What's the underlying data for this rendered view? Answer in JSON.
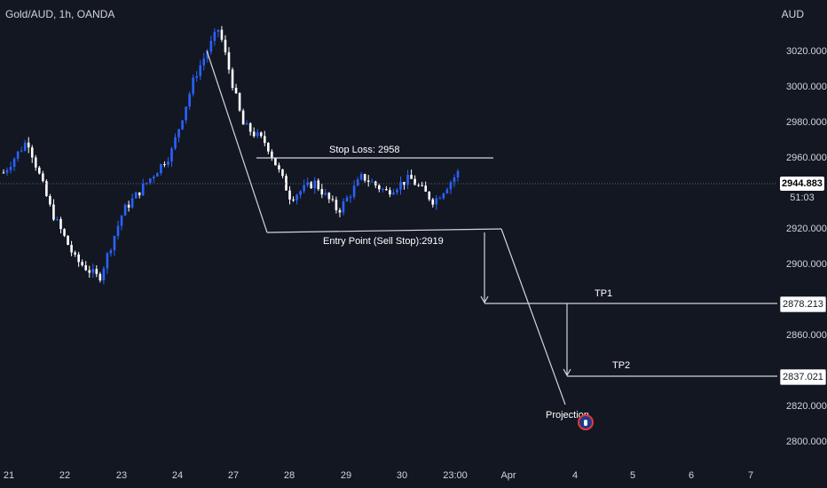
{
  "header": {
    "symbol": "Gold/AUD, 1h, OANDA",
    "currency": "AUD"
  },
  "colors": {
    "background": "#131722",
    "bull": "#2962ff",
    "bear": "#ffffff",
    "drawing": "#d1d4dc",
    "axis_text": "#d1d4dc"
  },
  "price_axis": {
    "ticks": [
      "3020.000",
      "3000.000",
      "2980.000",
      "2960.000",
      "2920.000",
      "2900.000",
      "2860.000",
      "2820.000",
      "2800.000"
    ],
    "last_price": "2944.883",
    "countdown": "51:03",
    "tp1_value": "2878.213",
    "tp2_value": "2837.021"
  },
  "time_axis": {
    "labels": [
      "21",
      "22",
      "23",
      "24",
      "27",
      "28",
      "29",
      "30",
      "23:00",
      "Apr",
      "4",
      "5",
      "6",
      "7"
    ]
  },
  "annotations": {
    "stop_loss": "Stop Loss: 2958",
    "entry": "Entry Point (Sell Stop):2919",
    "tp1": "TP1",
    "tp2": "TP2",
    "projection": "Projection"
  },
  "chart_data": {
    "type": "line",
    "title": "Gold/AUD, 1h, OANDA",
    "xlabel": "",
    "ylabel": "",
    "ylim": [
      2795,
      3030
    ],
    "x_ticks": [
      "21",
      "22",
      "23",
      "24",
      "27",
      "28",
      "29",
      "30",
      "23:00",
      "Apr",
      "4",
      "5",
      "6",
      "7"
    ],
    "series": [
      {
        "name": "Gold/AUD",
        "x": [
          "21",
          "21",
          "22",
          "22",
          "22",
          "23",
          "23",
          "24",
          "24",
          "24",
          "27",
          "27",
          "27",
          "28",
          "28",
          "29",
          "29",
          "30",
          "30",
          "30"
        ],
        "values": [
          2945,
          2962,
          2925,
          2900,
          2890,
          2925,
          2940,
          2955,
          2995,
          3020,
          2970,
          2960,
          2932,
          2940,
          2925,
          2943,
          2935,
          2942,
          2930,
          2944.883
        ]
      }
    ],
    "levels": {
      "stop_loss": 2958,
      "entry": 2919,
      "tp1": 2878.213,
      "tp2": 2837.021,
      "last": 2944.883
    }
  }
}
